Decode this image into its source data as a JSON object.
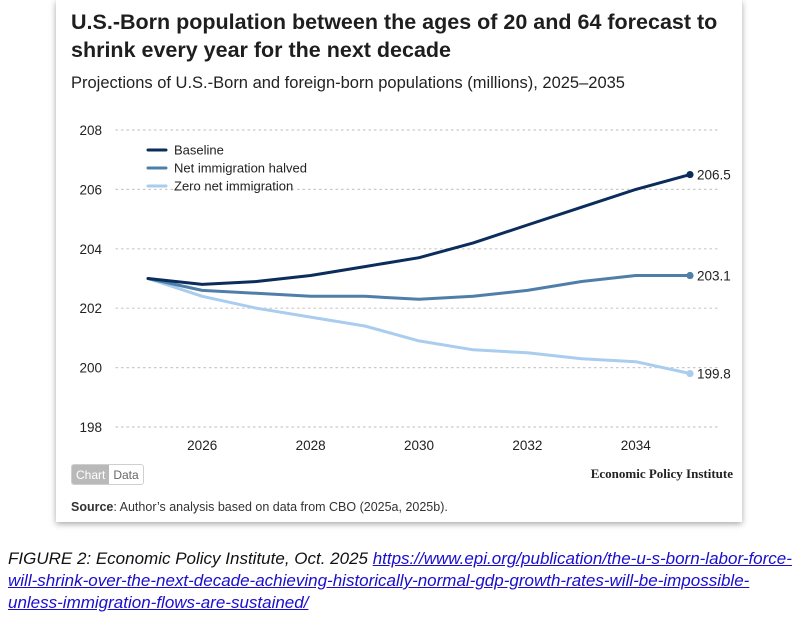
{
  "title": "U.S.-Born population between the ages of 20 and 64 forecast to shrink every year for the next decade",
  "subtitle": "Projections of U.S.-Born and foreign-born populations (millions), 2025–2035",
  "toggle": {
    "chart_label": "Chart",
    "data_label": "Data",
    "active": "Chart"
  },
  "brand": "Economic Policy Institute",
  "source": {
    "label": "Source",
    "text": ": Author’s analysis based on data from CBO (2025a, 2025b)."
  },
  "caption": {
    "prefix": "FIGURE 2: Economic Policy Institute, Oct. 2025 ",
    "link": "https://www.epi.org/publication/the-u-s-born-labor-force-will-shrink-over-the-next-decade-achieving-historically-normal-gdp-growth-rates-will-be-impossible-unless-immigration-flows-are-sustained/"
  },
  "chart_data": {
    "type": "line",
    "title": "U.S.-Born population between the ages of 20 and 64 forecast to shrink every year for the next decade",
    "subtitle": "Projections of U.S.-Born and foreign-born populations (millions), 2025–2035",
    "xlabel": "",
    "ylabel": "",
    "xlim": [
      2025,
      2035
    ],
    "ylim": [
      198,
      208
    ],
    "x_ticks": [
      2026,
      2028,
      2030,
      2032,
      2034
    ],
    "y_ticks": [
      198,
      200,
      202,
      204,
      206,
      208
    ],
    "grid": "horizontal dotted",
    "legend_position": "top-left",
    "x": [
      2025,
      2026,
      2027,
      2028,
      2029,
      2030,
      2031,
      2032,
      2033,
      2034,
      2035
    ],
    "series": [
      {
        "name": "Baseline",
        "color": "#0b2d5b",
        "values": [
          203.0,
          202.8,
          202.9,
          203.1,
          203.4,
          203.7,
          204.2,
          204.8,
          205.4,
          206.0,
          206.5
        ],
        "end_label": "206.5"
      },
      {
        "name": "Net immigration halved",
        "color": "#4f7fa8",
        "values": [
          203.0,
          202.6,
          202.5,
          202.4,
          202.4,
          202.3,
          202.4,
          202.6,
          202.9,
          203.1,
          203.1
        ],
        "end_label": "203.1"
      },
      {
        "name": "Zero net immigration",
        "color": "#a9cdee",
        "values": [
          203.0,
          202.4,
          202.0,
          201.7,
          201.4,
          200.9,
          200.6,
          200.5,
          200.3,
          200.2,
          199.8
        ],
        "end_label": "199.8"
      }
    ]
  }
}
